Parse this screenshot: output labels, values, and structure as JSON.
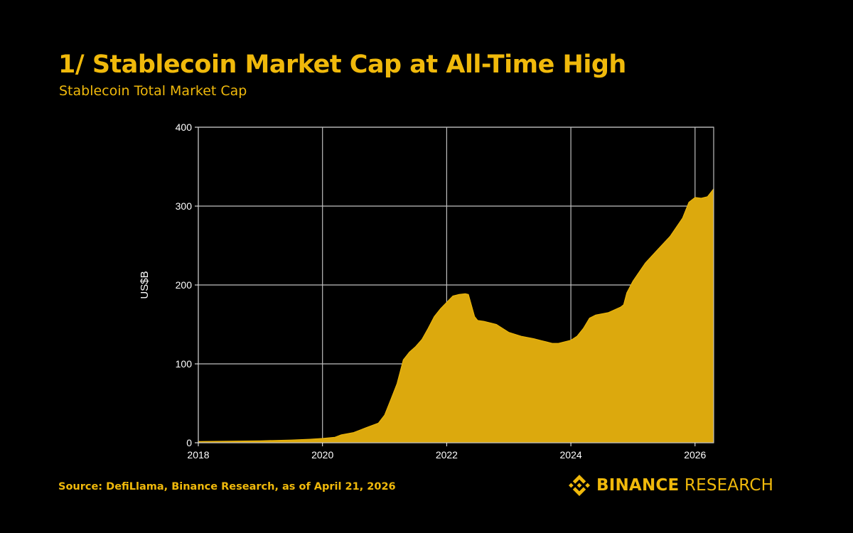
{
  "colors": {
    "accent": "#F0B90B",
    "fill": "#DCA90D",
    "background": "#000000",
    "axis_text": "#FFFFFF",
    "grid": "#BFBFBF"
  },
  "header": {
    "title": "1/ Stablecoin Market Cap at All-Time High",
    "subtitle": "Stablecoin Total Market Cap"
  },
  "footer": {
    "source": "Source: DefiLlama, Binance Research, as of April 21, 2026",
    "brand_primary": "BINANCE",
    "brand_secondary": " RESEARCH",
    "brand_icon": "binance-logo-icon"
  },
  "chart_data": {
    "type": "area",
    "title": "Stablecoin Total Market Cap",
    "xlabel": "",
    "ylabel": "US$B",
    "xlim": [
      2018.0,
      2026.3
    ],
    "ylim": [
      0,
      400
    ],
    "grid": true,
    "legend": "none",
    "xticks": [
      2018,
      2020,
      2022,
      2024,
      2026
    ],
    "xtick_labels": [
      "2018",
      "2020",
      "2022",
      "2024",
      "2026"
    ],
    "yticks": [
      0,
      100,
      200,
      300,
      400
    ],
    "ytick_labels": [
      "0",
      "100",
      "200",
      "300",
      "400"
    ],
    "series": [
      {
        "name": "Stablecoin Total Market Cap",
        "x": [
          2018.0,
          2018.5,
          2019.0,
          2019.5,
          2019.8,
          2020.0,
          2020.2,
          2020.3,
          2020.5,
          2020.7,
          2020.9,
          2021.0,
          2021.1,
          2021.2,
          2021.3,
          2021.4,
          2021.5,
          2021.6,
          2021.7,
          2021.8,
          2021.9,
          2022.0,
          2022.1,
          2022.2,
          2022.3,
          2022.35,
          2022.45,
          2022.5,
          2022.6,
          2022.8,
          2023.0,
          2023.2,
          2023.4,
          2023.6,
          2023.7,
          2023.8,
          2024.0,
          2024.1,
          2024.2,
          2024.3,
          2024.4,
          2024.6,
          2024.8,
          2024.85,
          2024.9,
          2025.0,
          2025.2,
          2025.4,
          2025.6,
          2025.8,
          2025.9,
          2026.0,
          2026.1,
          2026.2,
          2026.3
        ],
        "values": [
          1.5,
          2,
          2.5,
          3.5,
          4.5,
          5.5,
          7,
          10,
          13,
          19,
          25,
          35,
          55,
          75,
          105,
          115,
          122,
          131,
          145,
          160,
          170,
          178,
          186,
          188,
          189,
          188,
          160,
          155,
          154,
          150,
          140,
          135,
          132,
          128,
          126,
          126,
          130,
          135,
          145,
          158,
          162,
          165,
          172,
          175,
          190,
          205,
          228,
          245,
          262,
          285,
          305,
          311,
          310,
          312,
          322
        ]
      }
    ]
  }
}
